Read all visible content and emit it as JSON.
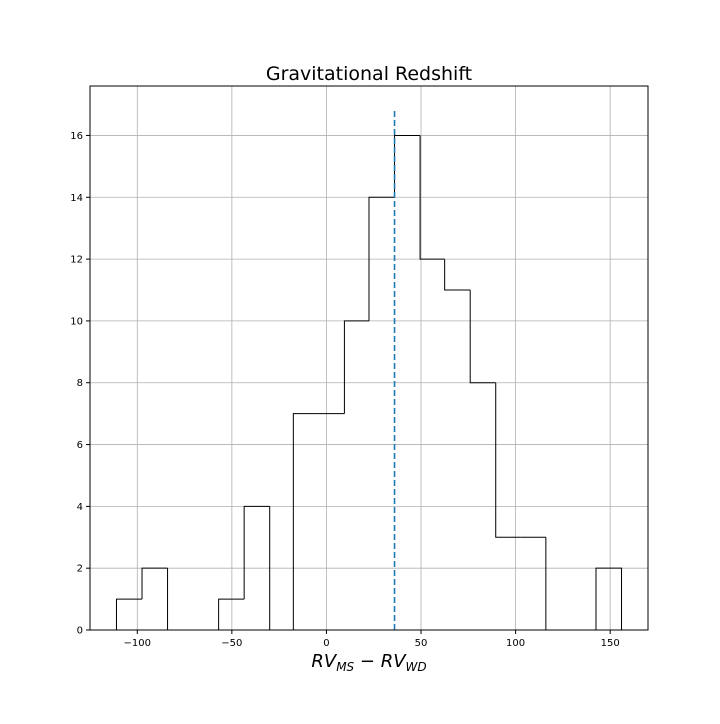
{
  "chart_data": {
    "type": "histogram",
    "title": "Gravitational Redshift",
    "xlabel": "RV_MS − RV_WD",
    "xlabel_parts": {
      "rv1": "RV",
      "sub1": "MS",
      "minus": " − ",
      "rv2": "RV",
      "sub2": "WD"
    },
    "ylabel": "",
    "xlim": [
      -125,
      170
    ],
    "ylim": [
      0,
      17.6
    ],
    "xticks": [
      -100,
      -50,
      0,
      50,
      100,
      150
    ],
    "xtick_labels": [
      "−100",
      "−50",
      "0",
      "50",
      "100",
      "150"
    ],
    "yticks": [
      0,
      2,
      4,
      6,
      8,
      10,
      12,
      14,
      16
    ],
    "ytick_labels": [
      "0",
      "2",
      "4",
      "6",
      "8",
      "10",
      "12",
      "14",
      "16"
    ],
    "grid": true,
    "bins": [
      {
        "x0": -111.0,
        "x1": -97.5,
        "count": 1
      },
      {
        "x0": -97.5,
        "x1": -84.0,
        "count": 2
      },
      {
        "x0": -84.0,
        "x1": -70.5,
        "count": 0
      },
      {
        "x0": -70.5,
        "x1": -57.0,
        "count": 0
      },
      {
        "x0": -57.0,
        "x1": -43.5,
        "count": 1
      },
      {
        "x0": -43.5,
        "x1": -30.0,
        "count": 4
      },
      {
        "x0": -30.0,
        "x1": -17.5,
        "count": 0
      },
      {
        "x0": -17.5,
        "x1": -4.0,
        "count": 7
      },
      {
        "x0": -4.0,
        "x1": 9.5,
        "count": 7
      },
      {
        "x0": 9.5,
        "x1": 22.5,
        "count": 10
      },
      {
        "x0": 22.5,
        "x1": 36.0,
        "count": 14
      },
      {
        "x0": 36.0,
        "x1": 49.5,
        "count": 16
      },
      {
        "x0": 49.5,
        "x1": 62.5,
        "count": 12
      },
      {
        "x0": 62.5,
        "x1": 76.0,
        "count": 11
      },
      {
        "x0": 76.0,
        "x1": 89.5,
        "count": 8
      },
      {
        "x0": 89.5,
        "x1": 102.5,
        "count": 3
      },
      {
        "x0": 102.5,
        "x1": 116.0,
        "count": 3
      },
      {
        "x0": 116.0,
        "x1": 129.0,
        "count": 0
      },
      {
        "x0": 129.0,
        "x1": 142.5,
        "count": 0
      },
      {
        "x0": 142.5,
        "x1": 156.0,
        "count": 2
      }
    ],
    "vline": {
      "x": 36.0,
      "y_top": 16.8,
      "style": "dashed",
      "color": "#1f77b4"
    },
    "colors": {
      "hist_edge": "#000000",
      "grid": "#b0b0b0",
      "vline": "#1f77b4"
    }
  }
}
